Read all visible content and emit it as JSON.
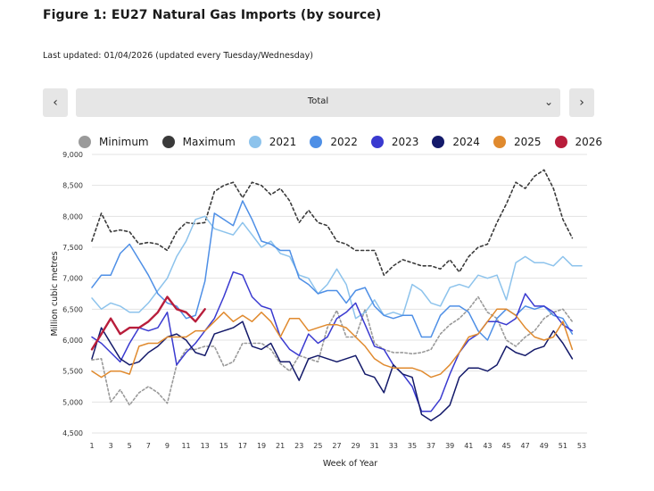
{
  "header": {
    "title": "Figure 1: EU27 Natural Gas Imports (by source)",
    "updated": "Last updated: 01/04/2026 (updated every Tuesday/Wednesday)"
  },
  "selector": {
    "value": "Total",
    "prev_icon": "chevron-left-icon",
    "next_icon": "chevron-right-icon",
    "caret_icon": "chevron-down-icon"
  },
  "chart_data": {
    "type": "line",
    "title": "",
    "xlabel": "Week of Year",
    "ylabel": "Million cubic metres",
    "ylim": [
      4500,
      9000
    ],
    "xlim": [
      1,
      53
    ],
    "y_ticks": [
      "9,000",
      "8,500",
      "8,000",
      "7,500",
      "7,000",
      "6,500",
      "6,000",
      "5,500",
      "5,000",
      "4,500"
    ],
    "x_ticks": [
      "1",
      "3",
      "5",
      "7",
      "9",
      "11",
      "13",
      "15",
      "17",
      "19",
      "21",
      "23",
      "25",
      "27",
      "29",
      "31",
      "33",
      "35",
      "37",
      "39",
      "41",
      "43",
      "45",
      "47",
      "49",
      "51",
      "53"
    ],
    "legend_position": "top",
    "series": [
      {
        "name": "Minimum",
        "color": "#9a9a9a",
        "dash": "dotted",
        "start_week": 1,
        "values": [
          5680,
          5700,
          5000,
          5200,
          4950,
          5150,
          5250,
          5150,
          4980,
          5600,
          5850,
          5850,
          5900,
          5900,
          5580,
          5650,
          5950,
          5950,
          5950,
          5850,
          5620,
          5500,
          5750,
          5700,
          5650,
          6200,
          6480,
          6050,
          6050,
          6500,
          5950,
          5850,
          5800,
          5800,
          5780,
          5800,
          5850,
          6100,
          6250,
          6350,
          6500,
          6700,
          6450,
          6350,
          6000,
          5900,
          6050,
          6150,
          6350,
          6450,
          6500,
          6300
        ]
      },
      {
        "name": "Maximum",
        "color": "#3a3a3a",
        "dash": "dashed",
        "start_week": 1,
        "values": [
          7600,
          8050,
          7750,
          7780,
          7750,
          7550,
          7580,
          7550,
          7450,
          7750,
          7900,
          7880,
          7900,
          8400,
          8500,
          8550,
          8300,
          8550,
          8500,
          8350,
          8450,
          8250,
          7900,
          8100,
          7900,
          7850,
          7600,
          7550,
          7450,
          7450,
          7450,
          7050,
          7200,
          7300,
          7250,
          7200,
          7200,
          7150,
          7300,
          7100,
          7350,
          7500,
          7550,
          7900,
          8200,
          8550,
          8450,
          8650,
          8750,
          8450,
          7950,
          7650
        ]
      },
      {
        "name": "2021",
        "color": "#8dc3ec",
        "dash": "solid",
        "start_week": 1,
        "values": [
          6680,
          6500,
          6600,
          6550,
          6450,
          6450,
          6600,
          6800,
          7000,
          7350,
          7600,
          7950,
          8000,
          7800,
          7750,
          7700,
          7900,
          7700,
          7500,
          7600,
          7400,
          7350,
          7050,
          7000,
          6750,
          6900,
          7150,
          6900,
          6350,
          6450,
          6650,
          6400,
          6450,
          6400,
          6900,
          6800,
          6600,
          6550,
          6850,
          6900,
          6850,
          7050,
          7000,
          7050,
          6650,
          7250,
          7350,
          7250,
          7250,
          7200,
          7350,
          7200,
          7200
        ]
      },
      {
        "name": "2022",
        "color": "#4e8fe6",
        "dash": "solid",
        "start_week": 1,
        "values": [
          6850,
          7050,
          7050,
          7400,
          7550,
          7300,
          7050,
          6750,
          6600,
          6550,
          6350,
          6400,
          6950,
          8050,
          7950,
          7850,
          8250,
          7950,
          7600,
          7550,
          7450,
          7450,
          7000,
          6900,
          6750,
          6800,
          6800,
          6600,
          6800,
          6850,
          6550,
          6400,
          6350,
          6400,
          6400,
          6050,
          6050,
          6400,
          6550,
          6550,
          6450,
          6150,
          6000,
          6350,
          6500,
          6400,
          6550,
          6500,
          6550,
          6400,
          6350,
          6100
        ]
      },
      {
        "name": "2023",
        "color": "#3a3ad0",
        "dash": "solid",
        "start_week": 1,
        "values": [
          6050,
          5950,
          5800,
          5650,
          5950,
          6200,
          6150,
          6200,
          6450,
          5600,
          5800,
          5950,
          6150,
          6350,
          6700,
          7100,
          7050,
          6700,
          6550,
          6500,
          6050,
          5850,
          5750,
          6100,
          5950,
          6050,
          6350,
          6450,
          6600,
          6250,
          5900,
          5850,
          5600,
          5450,
          5250,
          4850,
          4850,
          5050,
          5450,
          5800,
          6000,
          6100,
          6300,
          6300,
          6250,
          6350,
          6750,
          6550,
          6550,
          6450,
          6250,
          6150
        ]
      },
      {
        "name": "2024",
        "color": "#141a6a",
        "dash": "solid",
        "start_week": 1,
        "values": [
          5700,
          6200,
          5950,
          5700,
          5600,
          5650,
          5800,
          5900,
          6050,
          6100,
          6000,
          5800,
          5750,
          6100,
          6150,
          6200,
          6300,
          5900,
          5850,
          5950,
          5650,
          5650,
          5350,
          5700,
          5750,
          5700,
          5650,
          5700,
          5750,
          5450,
          5400,
          5150,
          5600,
          5450,
          5400,
          4800,
          4700,
          4800,
          4950,
          5400,
          5550,
          5550,
          5500,
          5600,
          5900,
          5800,
          5750,
          5850,
          5900,
          6150,
          5950,
          5700
        ]
      },
      {
        "name": "2025",
        "color": "#e08a2e",
        "dash": "solid",
        "start_week": 1,
        "values": [
          5500,
          5400,
          5500,
          5500,
          5450,
          5900,
          5950,
          5950,
          6050,
          6050,
          6050,
          6150,
          6150,
          6300,
          6450,
          6300,
          6400,
          6300,
          6450,
          6300,
          6050,
          6350,
          6350,
          6150,
          6200,
          6250,
          6250,
          6200,
          6050,
          5900,
          5700,
          5600,
          5550,
          5550,
          5550,
          5500,
          5400,
          5450,
          5600,
          5800,
          6050,
          6100,
          6300,
          6500,
          6500,
          6400,
          6200,
          6050,
          6000,
          6050,
          6300,
          5850
        ]
      },
      {
        "name": "2026",
        "color": "#b81d3b",
        "dash": "solid",
        "start_week": 1,
        "values": [
          5850,
          6100,
          6350,
          6100,
          6200,
          6200,
          6300,
          6450,
          6700,
          6500,
          6450,
          6300,
          6500
        ]
      }
    ]
  }
}
